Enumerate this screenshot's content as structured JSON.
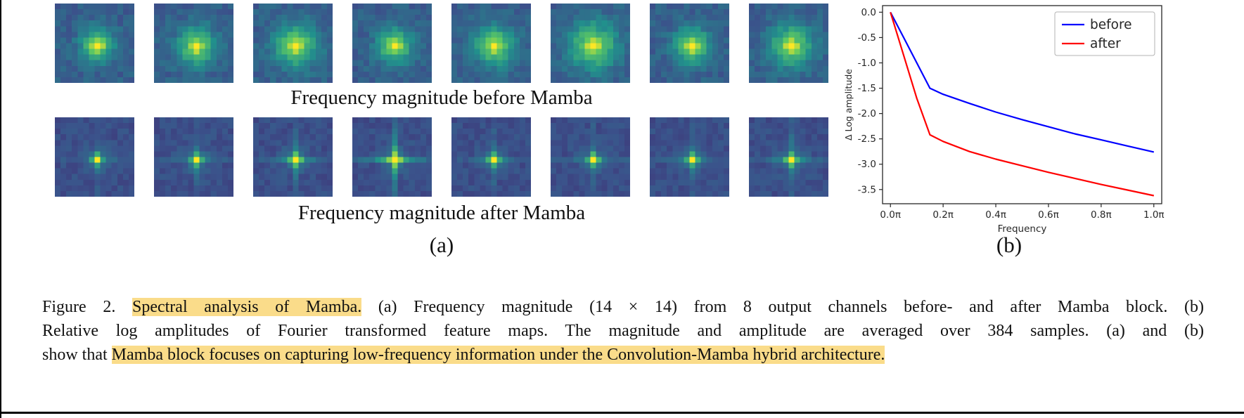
{
  "figure": {
    "panel_a": {
      "label": "(a)",
      "captions": {
        "before": "Frequency magnitude before Mamba",
        "after": "Frequency magnitude after Mamba"
      },
      "colormap": {
        "name": "viridis",
        "stops": [
          {
            "t": 0.0,
            "rgb": [
              68,
              1,
              84
            ]
          },
          {
            "t": 0.25,
            "rgb": [
              59,
              82,
              139
            ]
          },
          {
            "t": 0.5,
            "rgb": [
              33,
              145,
              140
            ]
          },
          {
            "t": 0.75,
            "rgb": [
              94,
              201,
              98
            ]
          },
          {
            "t": 1.0,
            "rgb": [
              253,
              231,
              37
            ]
          }
        ]
      },
      "grid_size": 14,
      "rows": [
        {
          "key": "before",
          "bg": 0.3,
          "glow": 0.48,
          "peak": 0.55,
          "noise": 0.12,
          "channels": [
            {
              "sigma": 2.0,
              "seed": 11,
              "cross": 0
            },
            {
              "sigma": 2.3,
              "seed": 23,
              "cross": 0
            },
            {
              "sigma": 2.6,
              "seed": 37,
              "cross": 0
            },
            {
              "sigma": 2.1,
              "seed": 47,
              "cross": 0
            },
            {
              "sigma": 2.4,
              "seed": 59,
              "cross": 0
            },
            {
              "sigma": 2.9,
              "seed": 71,
              "cross": 0
            },
            {
              "sigma": 2.2,
              "seed": 83,
              "cross": 0
            },
            {
              "sigma": 2.6,
              "seed": 97,
              "cross": 0
            }
          ]
        },
        {
          "key": "after",
          "bg": 0.24,
          "glow": 0.12,
          "peak": 0.85,
          "noise": 0.08,
          "channels": [
            {
              "sigma": 1.6,
              "seed": 101,
              "cross": 0.1
            },
            {
              "sigma": 1.8,
              "seed": 113,
              "cross": 0.12
            },
            {
              "sigma": 1.7,
              "seed": 127,
              "cross": 0.22
            },
            {
              "sigma": 1.8,
              "seed": 139,
              "cross": 0.4
            },
            {
              "sigma": 1.6,
              "seed": 149,
              "cross": 0.14
            },
            {
              "sigma": 1.7,
              "seed": 163,
              "cross": 0.16
            },
            {
              "sigma": 1.6,
              "seed": 173,
              "cross": 0.12
            },
            {
              "sigma": 1.7,
              "seed": 181,
              "cross": 0.2
            }
          ]
        }
      ]
    },
    "panel_b": {
      "label": "(b)"
    }
  },
  "chart_data": {
    "type": "line",
    "title": "",
    "xlabel": "Frequency",
    "ylabel": "Δ Log amplitude",
    "grid": false,
    "legend_position": "upper right",
    "xlim": [
      -0.03,
      1.03
    ],
    "ylim": [
      -3.78,
      0.13
    ],
    "xticks": {
      "values": [
        0,
        0.2,
        0.4,
        0.6,
        0.8,
        1.0
      ],
      "labels": [
        "0.0π",
        "0.2π",
        "0.4π",
        "0.6π",
        "0.8π",
        "1.0π"
      ]
    },
    "yticks": {
      "values": [
        0,
        -0.5,
        -1.0,
        -1.5,
        -2.0,
        -2.5,
        -3.0,
        -3.5
      ],
      "labels": [
        "0.0",
        "-0.5",
        "-1.0",
        "-1.5",
        "-2.0",
        "-2.5",
        "-3.0",
        "-3.5"
      ]
    },
    "x": [
      0,
      0.05,
      0.1,
      0.15,
      0.2,
      0.3,
      0.4,
      0.5,
      0.6,
      0.7,
      0.8,
      0.9,
      1.0
    ],
    "series": [
      {
        "name": "before",
        "color": "#0000ff",
        "values": [
          0,
          -0.5,
          -1.0,
          -1.5,
          -1.62,
          -1.8,
          -1.97,
          -2.12,
          -2.26,
          -2.4,
          -2.52,
          -2.64,
          -2.76
        ]
      },
      {
        "name": "after",
        "color": "#ff0000",
        "values": [
          0,
          -0.85,
          -1.7,
          -2.42,
          -2.55,
          -2.75,
          -2.9,
          -3.03,
          -3.16,
          -3.28,
          -3.4,
          -3.51,
          -3.62
        ]
      }
    ]
  },
  "caption": {
    "highlight_color": "#fadc8a",
    "lines": [
      {
        "justify": true,
        "segments": [
          {
            "text": "Figure 2.  ",
            "highlight": false
          },
          {
            "text": "Spectral analysis of Mamba.",
            "highlight": true
          },
          {
            "text": "  (a) Frequency magnitude (14 × 14) from 8 output channels before- and after Mamba block.  (b)",
            "highlight": false
          }
        ]
      },
      {
        "justify": true,
        "segments": [
          {
            "text": "Relative log amplitudes of Fourier transformed feature maps.  The magnitude and amplitude are averaged over 384 samples.  (a) and (b)",
            "highlight": false
          }
        ]
      },
      {
        "justify": false,
        "segments": [
          {
            "text": "show that ",
            "highlight": false
          },
          {
            "text": "Mamba block focuses on capturing low-frequency information under the Convolution-Mamba hybrid architecture.",
            "highlight": true
          }
        ]
      }
    ]
  }
}
